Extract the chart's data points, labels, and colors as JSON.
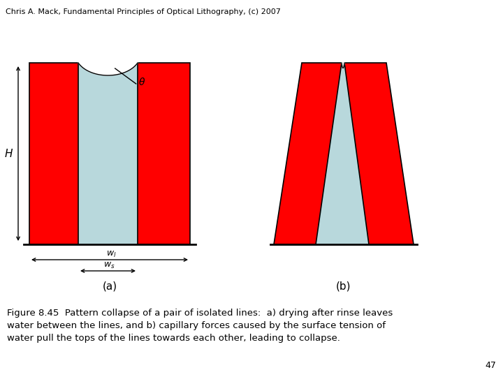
{
  "header": "Chris A. Mack, Fundamental Principles of Optical Lithography, (c) 2007",
  "caption": "Figure 8.45  Pattern collapse of a pair of isolated lines:  a) drying after rinse leaves\nwater between the lines, and b) capillary forces caused by the surface tension of\nwater pull the tops of the lines towards each other, leading to collapse.",
  "page_num": "47",
  "red_color": "#FF0000",
  "water_color": "#B8D8DC",
  "bg_color": "#FFFFFF",
  "label_a": "(a)",
  "label_b": "(b)",
  "fig_width": 7.2,
  "fig_height": 5.4
}
